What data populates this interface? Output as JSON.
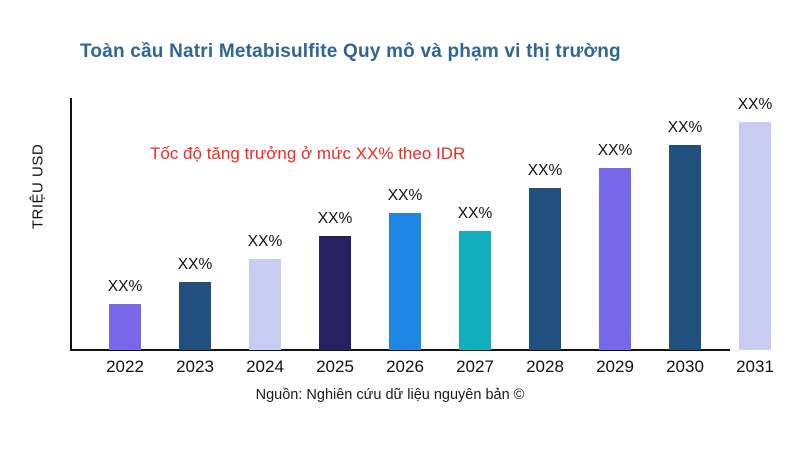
{
  "page": {
    "title": "Toàn cầu Natri Metabisulfite Quy mô và phạm vi thị trường",
    "annotation": "Tốc độ tăng trưởng ở mức XX% theo IDR",
    "ylabel": "TRIỆU USD",
    "source": "Nguồn: Nghiên cứu dữ liệu nguyên bản ©"
  },
  "colors": {
    "title": "#2F6695",
    "annotation": "#EE2B24",
    "axis": "#111111",
    "label_text": "#111111"
  },
  "chart_data": {
    "type": "bar",
    "title": "Toàn cầu Natri Metabisulfite Quy mô và phạm vi thị trường",
    "xlabel": "",
    "ylabel": "TRIỆU USD",
    "categories": [
      "2022",
      "2023",
      "2024",
      "2025",
      "2026",
      "2027",
      "2028",
      "2029",
      "2030",
      "2031"
    ],
    "values": [
      20,
      30,
      40,
      50,
      60,
      52,
      71,
      80,
      90,
      100
    ],
    "values_note": "no numeric axis shown; values are bar heights as % of tallest bar (2031=100); data labels masked as XX%",
    "bar_labels": [
      "XX%",
      "XX%",
      "XX%",
      "XX%",
      "XX%",
      "XX%",
      "XX%",
      "XX%",
      "XX%",
      "XX%"
    ],
    "bar_colors": [
      "#7668E8",
      "#21507E",
      "#C9CCF2",
      "#262160",
      "#1E86E5",
      "#12AEBE",
      "#21507E",
      "#7668E8",
      "#21507E",
      "#C9CCF2"
    ],
    "annotation": "Tốc độ tăng trưởng ở mức XX% theo IDR",
    "annotation_color": "#EE2B24",
    "source": "Nguồn: Nghiên cứu dữ liệu nguyên bản ©",
    "ylim": [
      0,
      100
    ],
    "grid": false,
    "legend": false
  }
}
